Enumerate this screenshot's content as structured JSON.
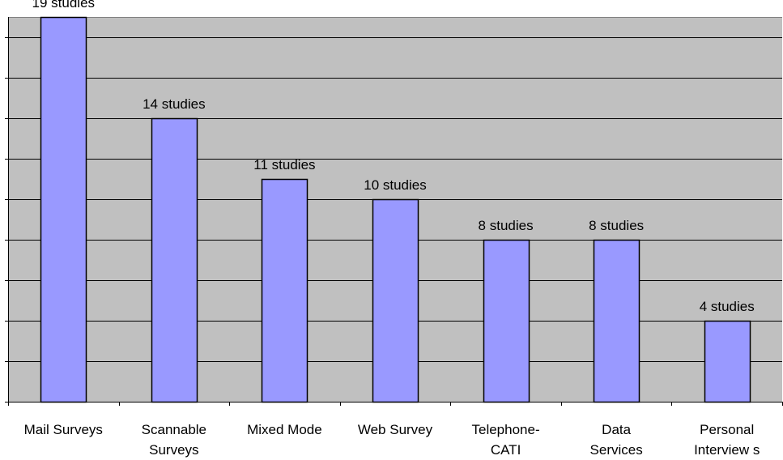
{
  "chart_data": {
    "type": "bar",
    "categories": [
      [
        "Mail Surveys"
      ],
      [
        "Scannable",
        "Surveys"
      ],
      [
        "Mixed Mode"
      ],
      [
        "Web Survey"
      ],
      [
        "Telephone-",
        "CATI"
      ],
      [
        "Data",
        "Services"
      ],
      [
        "Personal",
        "Interview s"
      ]
    ],
    "values": [
      19,
      14,
      11,
      10,
      8,
      8,
      4
    ],
    "data_labels": [
      "19 studies",
      "14 studies",
      "11 studies",
      "10 studies",
      "8 studies",
      "8 studies",
      "4 studies"
    ],
    "ylim": [
      0,
      19
    ],
    "grid": true,
    "colors": {
      "plot_background": "#c0c0c0",
      "bar_fill": "#9999ff",
      "bar_stroke": "#000000",
      "gridline": "#000000"
    }
  }
}
